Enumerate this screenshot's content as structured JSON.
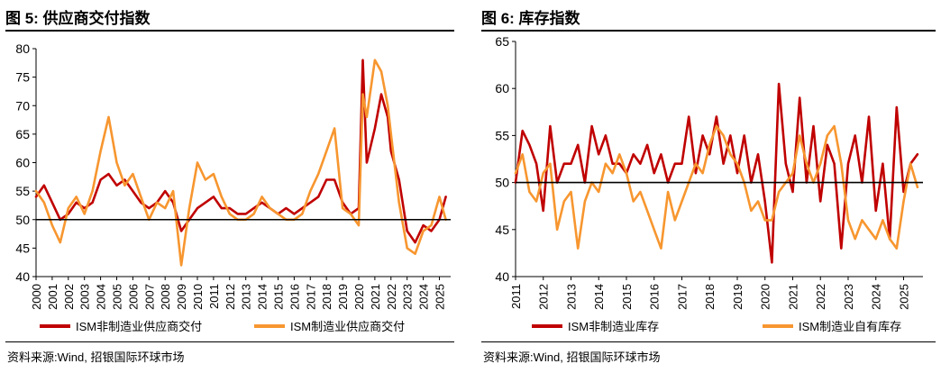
{
  "figures": [
    {
      "title": "图 5: 供应商交付指数",
      "source": "资料来源:Wind, 招银国际环球市场"
    },
    {
      "title": "图 6: 库存指数",
      "source": "资料来源:Wind, 招银国际环球市场"
    }
  ],
  "chart_data": [
    {
      "type": "line",
      "title": "图 5: 供应商交付指数",
      "xlabel": "",
      "ylabel": "",
      "xlim": [
        2000,
        2025.7
      ],
      "ylim": [
        40,
        80
      ],
      "yticks": [
        40,
        45,
        50,
        55,
        60,
        65,
        70,
        75,
        80
      ],
      "xticks": [
        "2000",
        "2001",
        "2002",
        "2003",
        "2004",
        "2005",
        "2006",
        "2007",
        "2008",
        "2009",
        "2010",
        "2011",
        "2012",
        "2013",
        "2014",
        "2015",
        "2016",
        "2017",
        "2018",
        "2019",
        "2020",
        "2021",
        "2022",
        "2023",
        "2024",
        "2025"
      ],
      "reference_line": 50,
      "legend_position": "bottom",
      "series": [
        {
          "name": "ISM非制造业供应商交付",
          "color": "#C00000",
          "x": [
            2000,
            2000.5,
            2001,
            2001.5,
            2002,
            2002.5,
            2003,
            2003.5,
            2004,
            2004.5,
            2005,
            2005.5,
            2006,
            2006.5,
            2007,
            2007.5,
            2008,
            2008.5,
            2009,
            2009.5,
            2010,
            2010.5,
            2011,
            2011.5,
            2012,
            2012.5,
            2013,
            2013.5,
            2014,
            2014.5,
            2015,
            2015.5,
            2016,
            2016.5,
            2017,
            2017.5,
            2018,
            2018.5,
            2019,
            2019.5,
            2020,
            2020.25,
            2020.5,
            2021,
            2021.4,
            2021.8,
            2022,
            2022.5,
            2023,
            2023.5,
            2024,
            2024.5,
            2025,
            2025.4
          ],
          "values": [
            54,
            56,
            53,
            50,
            51,
            53,
            52,
            53,
            57,
            58,
            56,
            57,
            55,
            53,
            52,
            53,
            55,
            53,
            48,
            50,
            52,
            53,
            54,
            52,
            52,
            51,
            51,
            52,
            53,
            52,
            51,
            52,
            51,
            52,
            53,
            54,
            57,
            57,
            53,
            51,
            52,
            78,
            60,
            66,
            72,
            68,
            62,
            57,
            48,
            46,
            49,
            48,
            50,
            54
          ]
        },
        {
          "name": "ISM制造业供应商交付",
          "color": "#F7962F",
          "x": [
            2000,
            2000.5,
            2001,
            2001.5,
            2002,
            2002.5,
            2003,
            2003.5,
            2004,
            2004.5,
            2005,
            2005.5,
            2006,
            2006.5,
            2007,
            2007.5,
            2008,
            2008.5,
            2009,
            2009.5,
            2010,
            2010.5,
            2011,
            2011.5,
            2012,
            2012.5,
            2013,
            2013.5,
            2014,
            2014.5,
            2015,
            2015.5,
            2016,
            2016.5,
            2017,
            2017.5,
            2018,
            2018.5,
            2019,
            2019.5,
            2020,
            2020.25,
            2020.5,
            2021,
            2021.4,
            2021.8,
            2022,
            2022.5,
            2023,
            2023.5,
            2024,
            2024.5,
            2025,
            2025.4
          ],
          "values": [
            55,
            53,
            49,
            46,
            52,
            54,
            51,
            55,
            62,
            68,
            60,
            56,
            58,
            54,
            50,
            53,
            52,
            55,
            42,
            52,
            60,
            57,
            58,
            54,
            51,
            50,
            50,
            51,
            54,
            52,
            51,
            50,
            50,
            51,
            55,
            58,
            62,
            66,
            52,
            51,
            49,
            72,
            68,
            78,
            76,
            70,
            65,
            53,
            45,
            44,
            48,
            49,
            54,
            50
          ]
        }
      ]
    },
    {
      "type": "line",
      "title": "图 6: 库存指数",
      "xlabel": "",
      "ylabel": "",
      "xlim": [
        2011,
        2025.7
      ],
      "ylim": [
        40,
        65
      ],
      "yticks": [
        40,
        45,
        50,
        55,
        60,
        65
      ],
      "xticks": [
        "2011",
        "2012",
        "2013",
        "2014",
        "2015",
        "2016",
        "2017",
        "2018",
        "2019",
        "2020",
        "2021",
        "2022",
        "2023",
        "2024",
        "2025"
      ],
      "reference_line": 50,
      "legend_position": "bottom",
      "series": [
        {
          "name": "ISM非制造业库存",
          "color": "#C00000",
          "x": [
            2011,
            2011.25,
            2011.5,
            2011.75,
            2012,
            2012.25,
            2012.5,
            2012.75,
            2013,
            2013.25,
            2013.5,
            2013.75,
            2014,
            2014.25,
            2014.5,
            2014.75,
            2015,
            2015.25,
            2015.5,
            2015.75,
            2016,
            2016.25,
            2016.5,
            2016.75,
            2017,
            2017.25,
            2017.5,
            2017.75,
            2018,
            2018.25,
            2018.5,
            2018.75,
            2019,
            2019.25,
            2019.5,
            2019.75,
            2020,
            2020.25,
            2020.5,
            2020.75,
            2021,
            2021.25,
            2021.5,
            2021.75,
            2022,
            2022.25,
            2022.5,
            2022.75,
            2023,
            2023.25,
            2023.5,
            2023.75,
            2024,
            2024.25,
            2024.5,
            2024.75,
            2025,
            2025.25,
            2025.5
          ],
          "values": [
            50,
            55.5,
            54,
            52,
            47,
            56,
            50,
            52,
            52,
            54,
            50,
            56,
            53,
            55,
            52,
            52,
            51,
            53,
            52,
            54,
            51,
            53,
            50,
            52,
            52,
            57,
            51,
            55,
            53,
            57,
            52,
            55,
            51,
            55,
            50,
            53,
            48,
            41.5,
            60.5,
            52,
            49,
            59,
            50,
            56,
            48,
            54,
            52,
            43,
            52,
            55,
            50,
            57,
            47,
            52,
            44,
            58,
            49,
            52,
            53
          ]
        },
        {
          "name": "ISM制造业自有库存",
          "color": "#F7962F",
          "x": [
            2011,
            2011.25,
            2011.5,
            2011.75,
            2012,
            2012.25,
            2012.5,
            2012.75,
            2013,
            2013.25,
            2013.5,
            2013.75,
            2014,
            2014.25,
            2014.5,
            2014.75,
            2015,
            2015.25,
            2015.5,
            2015.75,
            2016,
            2016.25,
            2016.5,
            2016.75,
            2017,
            2017.25,
            2017.5,
            2017.75,
            2018,
            2018.25,
            2018.5,
            2018.75,
            2019,
            2019.25,
            2019.5,
            2019.75,
            2020,
            2020.25,
            2020.5,
            2020.75,
            2021,
            2021.25,
            2021.5,
            2021.75,
            2022,
            2022.25,
            2022.5,
            2022.75,
            2023,
            2023.25,
            2023.5,
            2023.75,
            2024,
            2024.25,
            2024.5,
            2024.75,
            2025,
            2025.25,
            2025.5
          ],
          "values": [
            51,
            53,
            49,
            48,
            51,
            52,
            45,
            48,
            49,
            43,
            48,
            50,
            49,
            52,
            51,
            53,
            51,
            48,
            49,
            47,
            45,
            43,
            49,
            46,
            48,
            50,
            52,
            51,
            54,
            56,
            55,
            53,
            52,
            50,
            47,
            48,
            46,
            46,
            49,
            50,
            51,
            55,
            52,
            50,
            52,
            55,
            56,
            52,
            46,
            44,
            46,
            45,
            44,
            46,
            44,
            43,
            48,
            52,
            49.5
          ]
        }
      ]
    }
  ]
}
